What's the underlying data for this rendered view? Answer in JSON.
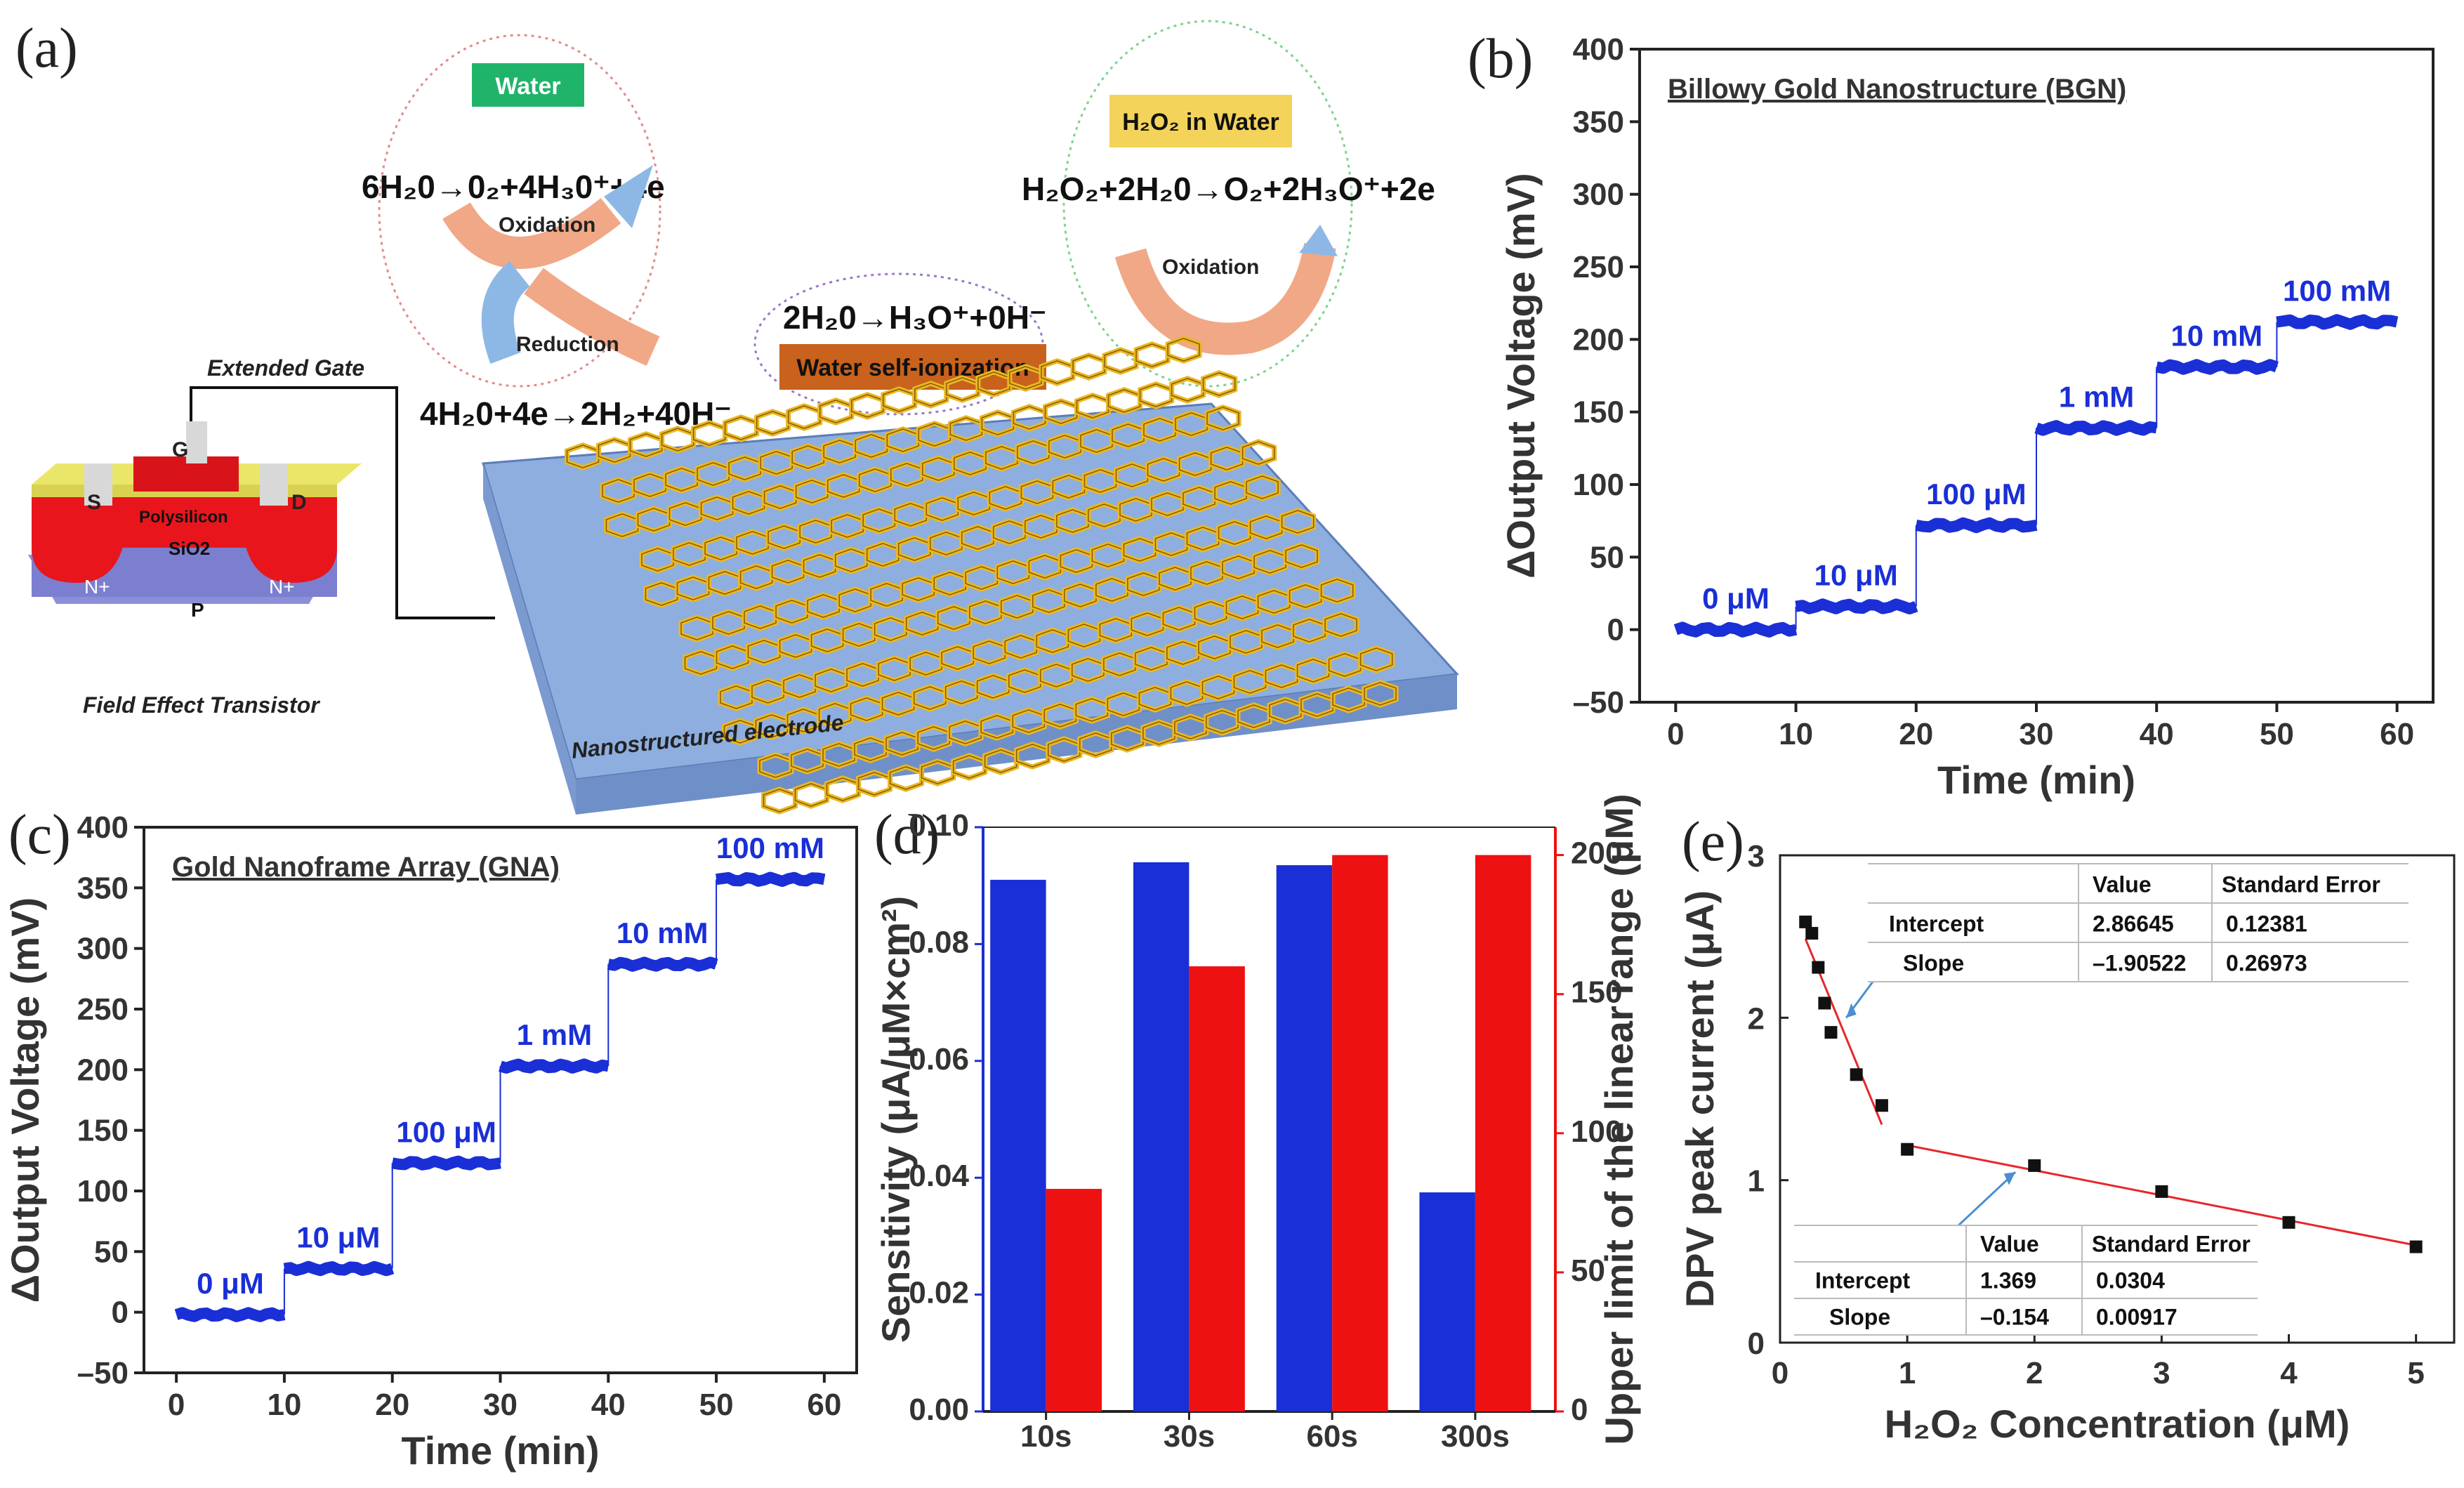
{
  "figure": {
    "panels": [
      "(a)",
      "(b)",
      "(c)",
      "(d)",
      "(e)"
    ]
  },
  "schematic": {
    "extended_gate": "Extended Gate",
    "fet_title": "Field Effect Transistor",
    "terminals": [
      "S",
      "G",
      "D"
    ],
    "layers": [
      "Polysilicon",
      "SiO2",
      "N+",
      "N+",
      "P"
    ],
    "water_badge": "Water",
    "water_oxidation_eq": "6H₂0→0₂+4H₃0⁺+4e",
    "water_oxidation": "Oxidation",
    "water_reduction": "Reduction",
    "water_reduction_eq": "4H₂0+4e→2H₂+40H⁻",
    "self_ion_eq": "2H₂0→H₃O⁺+0H⁻",
    "self_ion_badge": "Water self-ionization",
    "h2o2_badge": "H₂O₂ in Water",
    "h2o2_eq": "H₂O₂+2H₂0→O₂+2H₃O⁺+2e",
    "h2o2_oxidation": "Oxidation",
    "electrode_label": "Nanostructured electrode"
  },
  "colors": {
    "blue": "#1a2fd6",
    "red": "#ee1111",
    "fit": "#e8262a",
    "water_badge": "#1fb46a",
    "h2o2_badge": "#f3d35a",
    "self_ion_badge": "#c8621c",
    "electrode": "#8eaedf",
    "honeycomb": "#e9b824"
  },
  "chart_data": [
    {
      "id": "b",
      "type": "line",
      "title": "Billowy Gold Nanostructure (BGN)",
      "xlabel": "Time (min)",
      "ylabel": "ΔOutput Voltage (mV)",
      "xlim": [
        -3,
        63
      ],
      "ylim": [
        -50,
        400
      ],
      "xticks": [
        0,
        10,
        20,
        30,
        40,
        50,
        60
      ],
      "yticks": [
        -50,
        0,
        50,
        100,
        150,
        200,
        250,
        300,
        350,
        400
      ],
      "steps": [
        {
          "label": "0 μM",
          "x": [
            0,
            10
          ],
          "y": 0
        },
        {
          "label": "10 μM",
          "x": [
            10,
            20
          ],
          "y": 16
        },
        {
          "label": "100 μM",
          "x": [
            20,
            30
          ],
          "y": 72
        },
        {
          "label": "1 mM",
          "x": [
            30,
            40
          ],
          "y": 139
        },
        {
          "label": "10 mM",
          "x": [
            40,
            50
          ],
          "y": 181
        },
        {
          "label": "100 mM",
          "x": [
            50,
            60
          ],
          "y": 212
        }
      ]
    },
    {
      "id": "c",
      "type": "line",
      "title": "Gold Nanoframe Array (GNA)",
      "xlabel": "Time (min)",
      "ylabel": "ΔOutput Voltage (mV)",
      "xlim": [
        -3,
        63
      ],
      "ylim": [
        -50,
        400
      ],
      "xticks": [
        0,
        10,
        20,
        30,
        40,
        50,
        60
      ],
      "yticks": [
        -50,
        0,
        50,
        100,
        150,
        200,
        250,
        300,
        350,
        400
      ],
      "steps": [
        {
          "label": "0 μM",
          "x": [
            0,
            10
          ],
          "y": -2
        },
        {
          "label": "10 μM",
          "x": [
            10,
            20
          ],
          "y": 36
        },
        {
          "label": "100 μM",
          "x": [
            20,
            30
          ],
          "y": 123
        },
        {
          "label": "1 mM",
          "x": [
            30,
            40
          ],
          "y": 203
        },
        {
          "label": "10 mM",
          "x": [
            40,
            50
          ],
          "y": 287
        },
        {
          "label": "100 mM",
          "x": [
            50,
            60
          ],
          "y": 357
        }
      ]
    },
    {
      "id": "d",
      "type": "bar",
      "categories": [
        "10s",
        "30s",
        "60s",
        "300s"
      ],
      "series": [
        {
          "name": "Sensitivity",
          "axis": "left",
          "values": [
            0.091,
            0.094,
            0.0935,
            0.0375
          ]
        },
        {
          "name": "Upper limit of the linear range",
          "axis": "right",
          "values": [
            80,
            160,
            200,
            200
          ]
        }
      ],
      "ylabel_left": "Sensitivity (μA/μM×cm²)",
      "ylabel_right": "Upper limit of the linear range (μM)",
      "ylim_left": [
        0,
        0.1
      ],
      "ylim_right": [
        0,
        210
      ],
      "yticks_left": [
        "0.00",
        "0.02",
        "0.04",
        "0.06",
        "0.08",
        "0.10"
      ],
      "yticks_right": [
        0,
        50,
        100,
        150,
        200
      ]
    },
    {
      "id": "e",
      "type": "scatter",
      "xlabel": "H₂O₂ Concentration (μM)",
      "ylabel": "DPV peak current (μA)",
      "xlim": [
        0,
        5.3
      ],
      "ylim": [
        0,
        3
      ],
      "xticks": [
        0,
        1,
        2,
        3,
        4,
        5
      ],
      "yticks": [
        0,
        1,
        2,
        3
      ],
      "points": [
        {
          "x": 0.2,
          "y": 2.59
        },
        {
          "x": 0.25,
          "y": 2.52
        },
        {
          "x": 0.3,
          "y": 2.31
        },
        {
          "x": 0.35,
          "y": 2.09
        },
        {
          "x": 0.4,
          "y": 1.91
        },
        {
          "x": 0.6,
          "y": 1.65
        },
        {
          "x": 0.8,
          "y": 1.46
        },
        {
          "x": 1.0,
          "y": 1.19
        },
        {
          "x": 2.0,
          "y": 1.09
        },
        {
          "x": 3.0,
          "y": 0.93
        },
        {
          "x": 4.0,
          "y": 0.74
        },
        {
          "x": 5.0,
          "y": 0.59
        }
      ],
      "fits": [
        {
          "intercept": 2.86645,
          "slope": -1.90522,
          "x_range": [
            0.2,
            0.8
          ]
        },
        {
          "intercept": 1.369,
          "slope": -0.154,
          "x_range": [
            1.0,
            5.0
          ]
        }
      ],
      "table_top": {
        "headers": [
          "Value",
          "Standard Error"
        ],
        "rows": [
          [
            "Intercept",
            "2.86645",
            "0.12381"
          ],
          [
            "Slope",
            "–1.90522",
            "0.26973"
          ]
        ]
      },
      "table_bottom": {
        "headers": [
          "Value",
          "Standard Error"
        ],
        "rows": [
          [
            "Intercept",
            "1.369",
            "0.0304"
          ],
          [
            "Slope",
            "–0.154",
            "0.00917"
          ]
        ]
      }
    }
  ]
}
